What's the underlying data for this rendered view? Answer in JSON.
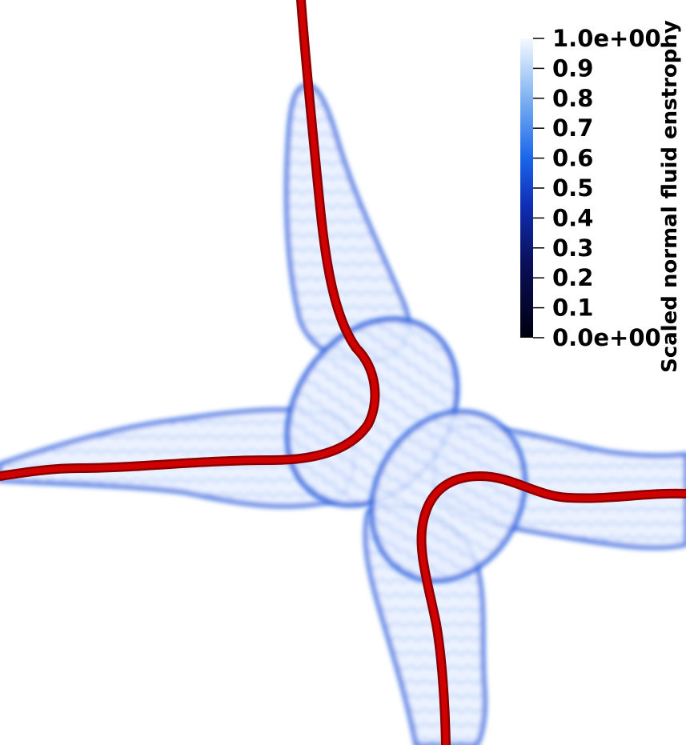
{
  "colorbar": {
    "title": "Scaled normal fluid enstrophy",
    "ticks": [
      "1.0e+00",
      "0.9",
      "0.8",
      "0.7",
      "0.6",
      "0.5",
      "0.4",
      "0.3",
      "0.2",
      "0.1",
      "0.0e+00"
    ],
    "range": [
      0,
      1
    ],
    "colormap": [
      "#000010",
      "#0a0f5a",
      "#1030b8",
      "#1a66ea",
      "#7fb2f2",
      "#f5f9ff"
    ]
  },
  "colors": {
    "vortex_line": "#cc0000",
    "background": "#ffffff"
  }
}
